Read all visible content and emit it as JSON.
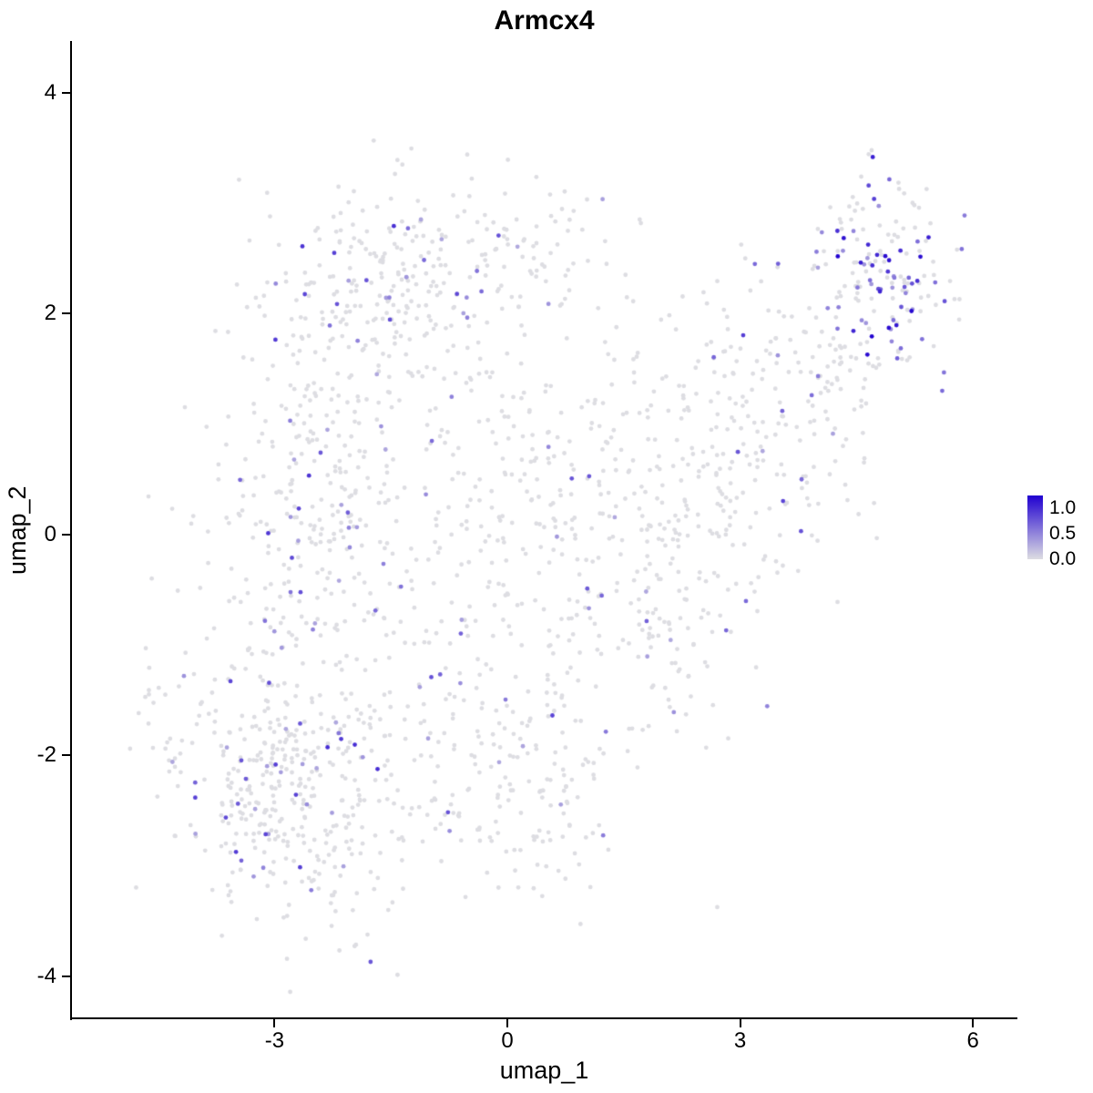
{
  "chart_data": {
    "type": "scatter",
    "title": "Armcx4",
    "xlabel": "umap_1",
    "ylabel": "umap_2",
    "xlim": [
      -5.6,
      6.55
    ],
    "ylim": [
      -4.38,
      4.46
    ],
    "x_ticks": [
      -3,
      0,
      3,
      6
    ],
    "y_ticks": [
      -4,
      -2,
      0,
      2,
      4
    ],
    "grid": false,
    "background": "#FFFFFF",
    "legend": {
      "position": "right",
      "tick_labels": [
        "1.0",
        "0.5",
        "0.0"
      ]
    },
    "colors": {
      "low": "#DDDDE2",
      "high": "#2000D0"
    },
    "color_max": 1.25,
    "point_radius": 2.4,
    "seed": 11,
    "n_points_approx": 2057,
    "clusters": [
      {
        "cx": -2.8,
        "cy": -2.3,
        "sx": 0.78,
        "sy": 0.62,
        "n": 430,
        "colored_frac": 0.11,
        "v_min": 0.3,
        "v_max": 1.0
      },
      {
        "cx": -2.5,
        "cy": 0.1,
        "sx": 0.68,
        "sy": 0.85,
        "n": 280,
        "colored_frac": 0.11,
        "v_min": 0.3,
        "v_max": 1.0
      },
      {
        "cx": -1.6,
        "cy": 2.05,
        "sx": 0.78,
        "sy": 0.55,
        "n": 250,
        "colored_frac": 0.1,
        "v_min": 0.3,
        "v_max": 1.0
      },
      {
        "cx": 0.2,
        "cy": 0.1,
        "sx": 0.85,
        "sy": 0.95,
        "n": 260,
        "colored_frac": 0.06,
        "v_min": 0.3,
        "v_max": 0.9
      },
      {
        "cx": 0.1,
        "cy": 2.5,
        "sx": 0.75,
        "sy": 0.35,
        "n": 90,
        "colored_frac": 0.07,
        "v_min": 0.3,
        "v_max": 0.9
      },
      {
        "cx": 0.2,
        "cy": -2.2,
        "sx": 0.85,
        "sy": 0.55,
        "n": 170,
        "colored_frac": 0.06,
        "v_min": 0.3,
        "v_max": 0.9
      },
      {
        "cx": 2.4,
        "cy": 0.8,
        "sx": 0.75,
        "sy": 0.75,
        "n": 200,
        "colored_frac": 0.05,
        "v_min": 0.3,
        "v_max": 0.9
      },
      {
        "cx": 2.2,
        "cy": -0.8,
        "sx": 0.6,
        "sy": 0.5,
        "n": 80,
        "colored_frac": 0.04,
        "v_min": 0.3,
        "v_max": 0.8
      },
      {
        "cx": 3.8,
        "cy": 1.2,
        "sx": 0.55,
        "sy": 0.65,
        "n": 120,
        "colored_frac": 0.05,
        "v_min": 0.3,
        "v_max": 0.9
      },
      {
        "cx": 4.85,
        "cy": 2.35,
        "sx": 0.45,
        "sy": 0.42,
        "n": 170,
        "colored_frac": 0.32,
        "v_min": 0.4,
        "v_max": 1.25
      },
      {
        "cx": -4.6,
        "cy": -1.3,
        "sx": 0.12,
        "sy": 0.18,
        "n": 7,
        "colored_frac": 0.0,
        "v_min": 0.0,
        "v_max": 0.0
      }
    ]
  }
}
